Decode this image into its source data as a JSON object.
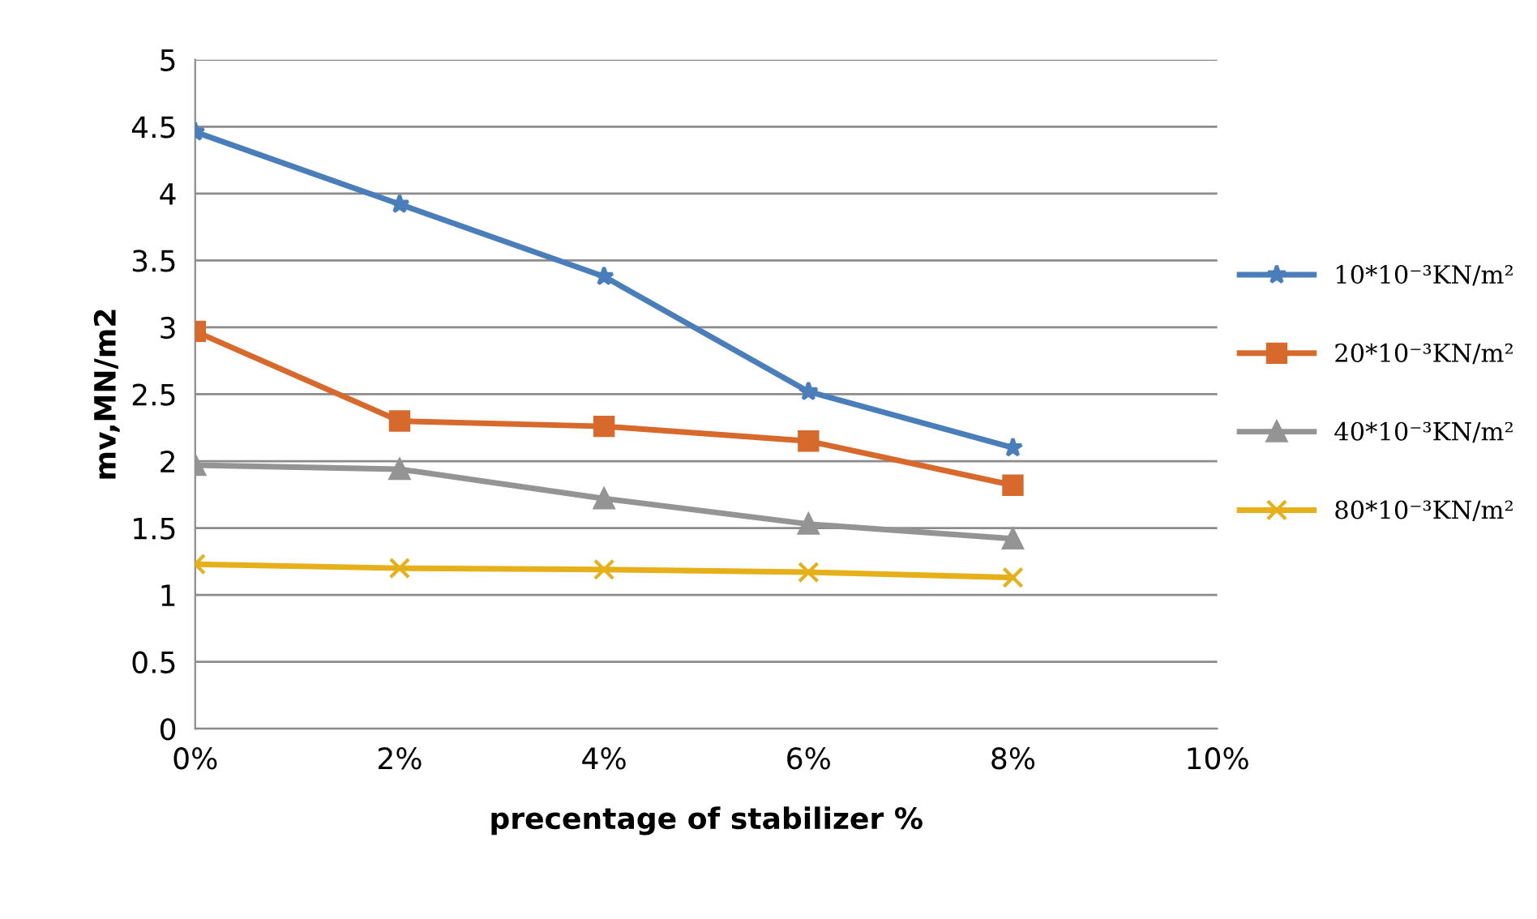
{
  "chart_data": {
    "type": "line",
    "xlabel": "precentage of stabilizer %",
    "ylabel": "mv,MN/m2",
    "x": [
      0,
      2,
      4,
      6,
      8
    ],
    "xlim": [
      0,
      10
    ],
    "xticks": [
      {
        "value": 0,
        "label": "0%"
      },
      {
        "value": 2,
        "label": "2%"
      },
      {
        "value": 4,
        "label": "4%"
      },
      {
        "value": 6,
        "label": "6%"
      },
      {
        "value": 8,
        "label": "8%"
      },
      {
        "value": 10,
        "label": "10%"
      }
    ],
    "ylim": [
      0,
      5
    ],
    "yticks": [
      0,
      0.5,
      1,
      1.5,
      2,
      2.5,
      3,
      3.5,
      4,
      4.5,
      5
    ],
    "grid": "y",
    "legend": "right",
    "line_style": "solid",
    "series": [
      {
        "name": "10*10⁻³KN/m²",
        "color": "#4a7ebb",
        "marker": "star",
        "values": [
          4.46,
          3.92,
          3.38,
          2.52,
          2.1
        ]
      },
      {
        "name": "20*10⁻³KN/m²",
        "color": "#d8692c",
        "marker": "square",
        "values": [
          2.97,
          2.3,
          2.26,
          2.15,
          1.82
        ]
      },
      {
        "name": "40*10⁻³KN/m²",
        "color": "#949494",
        "marker": "triangle",
        "values": [
          1.97,
          1.94,
          1.72,
          1.53,
          1.42
        ]
      },
      {
        "name": "80*10⁻³KN/m²",
        "color": "#e6b01a",
        "marker": "cross",
        "values": [
          1.23,
          1.2,
          1.19,
          1.17,
          1.13
        ]
      }
    ]
  }
}
